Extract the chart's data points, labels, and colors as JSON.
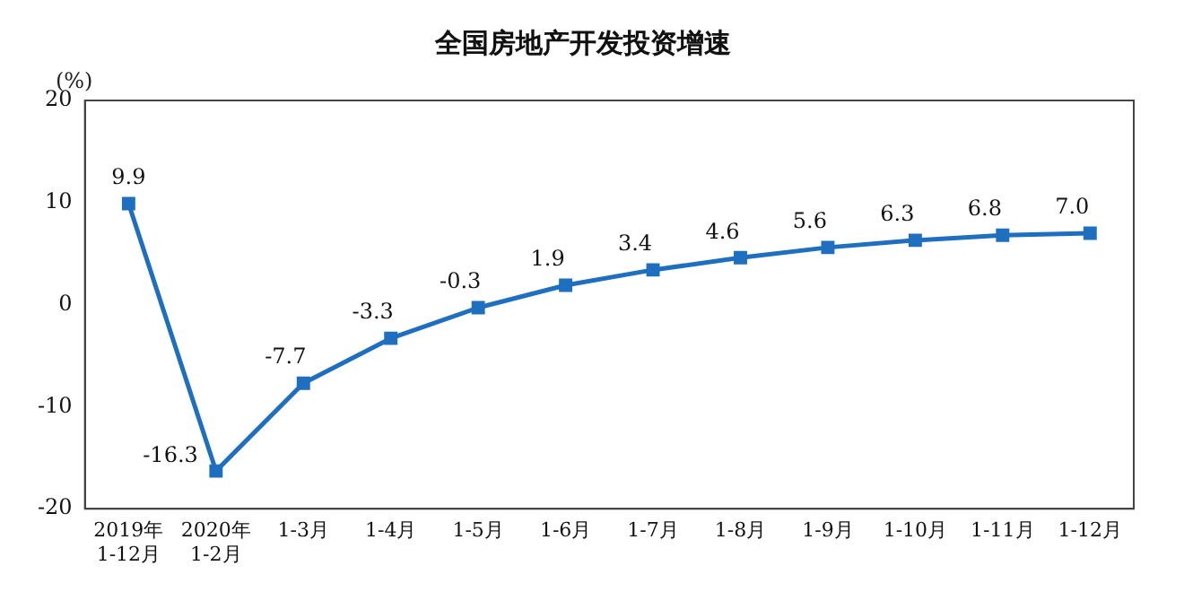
{
  "chart_data": {
    "type": "line",
    "title": "全国房地产开发投资增速",
    "ylabel": "(%)",
    "categories": [
      "2019年\n1-12月",
      "2020年\n1-2月",
      "1-3月",
      "1-4月",
      "1-5月",
      "1-6月",
      "1-7月",
      "1-8月",
      "1-9月",
      "1-10月",
      "1-11月",
      "1-12月"
    ],
    "series": [
      {
        "color": "#1f6fc0",
        "values": [
          9.9,
          -16.3,
          -7.7,
          -3.3,
          -0.3,
          1.9,
          3.4,
          4.6,
          5.6,
          6.3,
          6.8,
          7.0
        ],
        "value_labels": [
          "9.9",
          "-16.3",
          "-7.7",
          "-3.3",
          "-0.3",
          "1.9",
          "3.4",
          "4.6",
          "5.6",
          "6.3",
          "6.8",
          "7.0"
        ]
      }
    ],
    "ylim": [
      -20,
      20
    ],
    "yticks": [
      -20,
      -10,
      0,
      10,
      20
    ],
    "grid": false,
    "legend": false,
    "marker": "square",
    "line_style": "solid"
  }
}
